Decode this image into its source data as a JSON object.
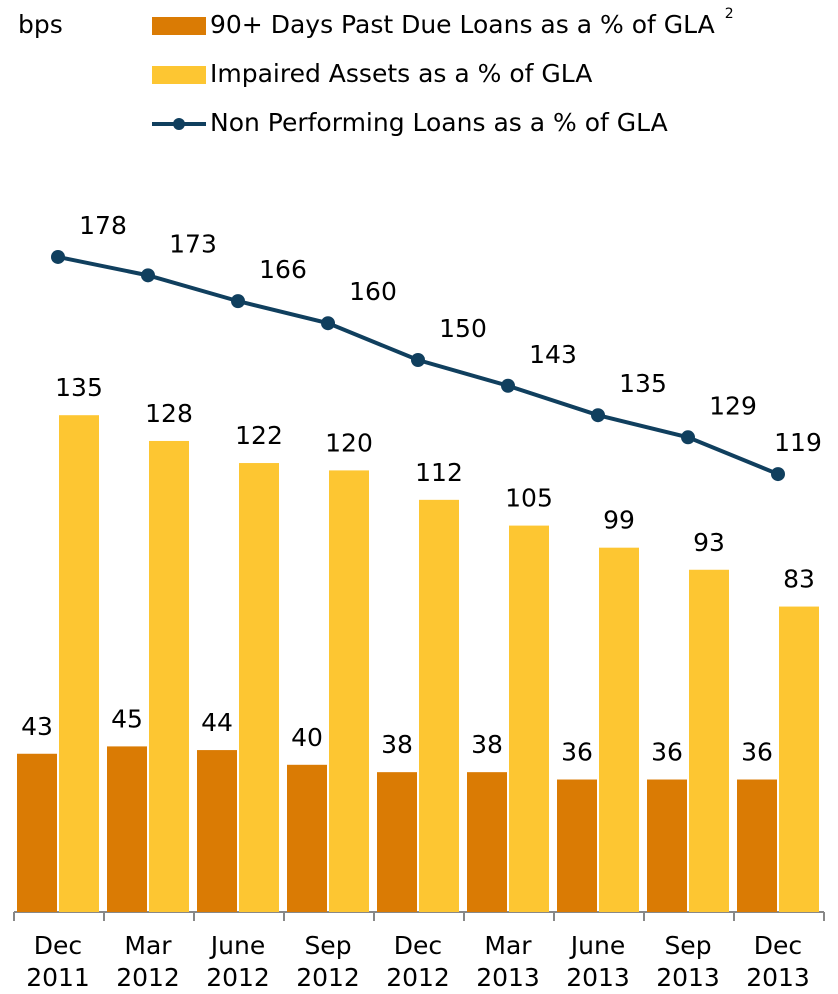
{
  "chart_data": {
    "type": "bar",
    "y_unit_label": "bps",
    "categories": [
      [
        "Dec",
        "2011"
      ],
      [
        "Mar",
        "2012"
      ],
      [
        "June",
        "2012"
      ],
      [
        "Sep",
        "2012"
      ],
      [
        "Dec",
        "2012"
      ],
      [
        "Mar",
        "2013"
      ],
      [
        "June",
        "2013"
      ],
      [
        "Sep",
        "2013"
      ],
      [
        "Dec",
        "2013"
      ]
    ],
    "series": [
      {
        "name": "90+ Days Past Due Loans as a % of GLA",
        "note": "2",
        "type": "bar",
        "color": "#da7b04",
        "values": [
          43,
          45,
          44,
          40,
          38,
          38,
          36,
          36,
          36
        ]
      },
      {
        "name": "Impaired Assets as a % of GLA",
        "type": "bar",
        "color": "#fdc632",
        "values": [
          135,
          128,
          122,
          120,
          112,
          105,
          99,
          93,
          83
        ]
      },
      {
        "name": "Non Performing Loans as a % of GLA",
        "type": "line",
        "color": "#103f5e",
        "values": [
          178,
          173,
          166,
          160,
          150,
          143,
          135,
          129,
          119
        ]
      }
    ],
    "ylim": [
      0,
      200
    ]
  }
}
